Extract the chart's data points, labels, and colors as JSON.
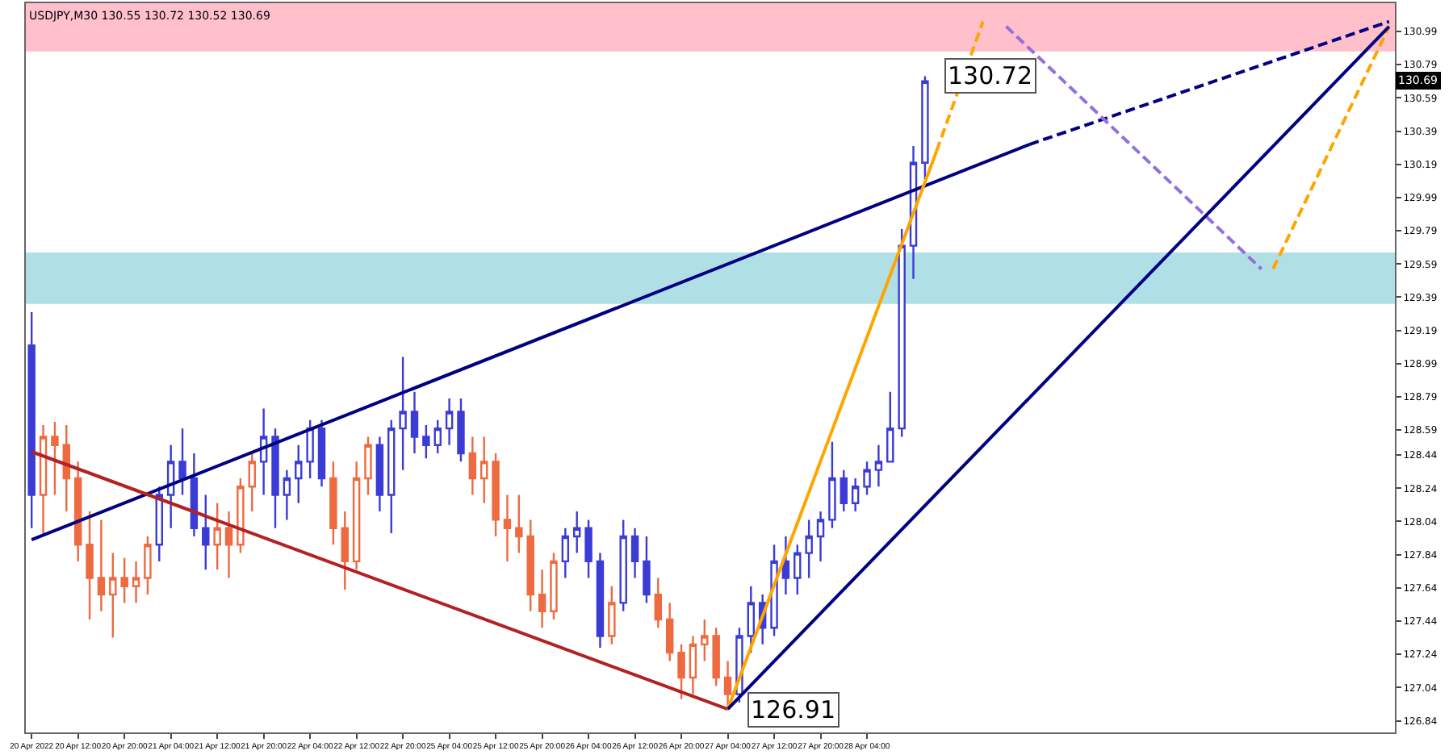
{
  "chart_data": {
    "type": "candlestick",
    "title": "USDJPY,M30 130.55 130.72 130.52 130.69",
    "categories": [
      "20 Apr 2022",
      null,
      null,
      null,
      "20 Apr 12:00",
      null,
      null,
      null,
      "20 Apr 20:00",
      null,
      null,
      null,
      "21 Apr 04:00",
      null,
      null,
      null,
      "21 Apr 12:00",
      null,
      null,
      null,
      "21 Apr 20:00",
      null,
      null,
      null,
      "22 Apr 04:00",
      null,
      null,
      null,
      "22 Apr 12:00",
      null,
      null,
      null,
      "22 Apr 20:00",
      null,
      null,
      null,
      "25 Apr 04:00",
      null,
      null,
      null,
      "25 Apr 12:00",
      null,
      null,
      null,
      "25 Apr 20:00",
      null,
      null,
      null,
      "26 Apr 04:00",
      null,
      null,
      null,
      "26 Apr 12:00",
      null,
      null,
      null,
      "26 Apr 20:00",
      null,
      null,
      null,
      "27 Apr 04:00",
      null,
      null,
      null,
      "27 Apr 12:00",
      null,
      null,
      null,
      "27 Apr 20:00",
      null,
      null,
      null,
      "28 Apr 04:00",
      null,
      null,
      null,
      null,
      null,
      null,
      null,
      null,
      null,
      null,
      null,
      null,
      null,
      null,
      null,
      null,
      null,
      null,
      null,
      null,
      null,
      null,
      null,
      null,
      null,
      null,
      null,
      null,
      null,
      null,
      null,
      null,
      null,
      null,
      null,
      null,
      null,
      null,
      null,
      null,
      null,
      null,
      null,
      null,
      null
    ],
    "ohlc": [
      [
        129.1,
        129.3,
        128.0,
        128.2
      ],
      [
        128.2,
        128.62,
        127.95,
        128.55
      ],
      [
        128.55,
        128.64,
        128.2,
        128.5
      ],
      [
        128.5,
        128.62,
        128.1,
        128.3
      ],
      [
        128.3,
        128.4,
        127.8,
        127.9
      ],
      [
        127.9,
        128.1,
        127.45,
        127.7
      ],
      [
        127.7,
        128.05,
        127.5,
        127.6
      ],
      [
        127.6,
        127.85,
        127.34,
        127.7
      ],
      [
        127.7,
        127.82,
        127.55,
        127.65
      ],
      [
        127.65,
        127.8,
        127.55,
        127.7
      ],
      [
        127.7,
        127.95,
        127.6,
        127.9
      ],
      [
        127.9,
        128.25,
        127.8,
        128.2
      ],
      [
        128.2,
        128.5,
        128.0,
        128.4
      ],
      [
        128.4,
        128.6,
        128.2,
        128.3
      ],
      [
        128.3,
        128.45,
        127.95,
        128.0
      ],
      [
        128.0,
        128.2,
        127.75,
        127.9
      ],
      [
        127.9,
        128.15,
        127.75,
        128.0
      ],
      [
        128.0,
        128.1,
        127.7,
        127.9
      ],
      [
        127.9,
        128.3,
        127.85,
        128.25
      ],
      [
        128.25,
        128.45,
        128.1,
        128.4
      ],
      [
        128.4,
        128.72,
        128.2,
        128.55
      ],
      [
        128.55,
        128.6,
        128.0,
        128.2
      ],
      [
        128.2,
        128.35,
        128.05,
        128.3
      ],
      [
        128.3,
        128.5,
        128.15,
        128.4
      ],
      [
        128.4,
        128.65,
        128.3,
        128.6
      ],
      [
        128.6,
        128.65,
        128.25,
        128.3
      ],
      [
        128.3,
        128.4,
        127.9,
        128.0
      ],
      [
        128.0,
        128.1,
        127.63,
        127.8
      ],
      [
        127.8,
        128.4,
        127.75,
        128.3
      ],
      [
        128.3,
        128.55,
        128.2,
        128.5
      ],
      [
        128.5,
        128.55,
        128.1,
        128.2
      ],
      [
        128.2,
        128.65,
        127.97,
        128.6
      ],
      [
        128.6,
        129.03,
        128.35,
        128.7
      ],
      [
        128.7,
        128.82,
        128.45,
        128.55
      ],
      [
        128.55,
        128.62,
        128.42,
        128.5
      ],
      [
        128.5,
        128.65,
        128.45,
        128.6
      ],
      [
        128.6,
        128.78,
        128.5,
        128.7
      ],
      [
        128.7,
        128.78,
        128.4,
        128.45
      ],
      [
        128.45,
        128.55,
        128.2,
        128.3
      ],
      [
        128.3,
        128.55,
        128.15,
        128.4
      ],
      [
        128.4,
        128.45,
        127.95,
        128.05
      ],
      [
        128.05,
        128.2,
        127.8,
        128.0
      ],
      [
        128.0,
        128.2,
        127.85,
        127.95
      ],
      [
        127.95,
        128.05,
        127.5,
        127.6
      ],
      [
        127.6,
        127.75,
        127.4,
        127.5
      ],
      [
        127.5,
        127.85,
        127.45,
        127.8
      ],
      [
        127.8,
        128.0,
        127.7,
        127.95
      ],
      [
        127.95,
        128.1,
        127.85,
        128.0
      ],
      [
        128.0,
        128.05,
        127.7,
        127.8
      ],
      [
        127.8,
        127.85,
        127.28,
        127.35
      ],
      [
        127.35,
        127.65,
        127.3,
        127.55
      ],
      [
        127.55,
        128.05,
        127.5,
        127.95
      ],
      [
        127.95,
        128.0,
        127.7,
        127.8
      ],
      [
        127.8,
        127.95,
        127.55,
        127.6
      ],
      [
        127.6,
        127.7,
        127.4,
        127.45
      ],
      [
        127.45,
        127.55,
        127.2,
        127.25
      ],
      [
        127.25,
        127.3,
        126.97,
        127.1
      ],
      [
        127.1,
        127.35,
        127.0,
        127.3
      ],
      [
        127.3,
        127.45,
        127.2,
        127.35
      ],
      [
        127.35,
        127.4,
        127.05,
        127.1
      ],
      [
        127.1,
        127.2,
        126.91,
        127.0
      ],
      [
        127.0,
        127.4,
        126.95,
        127.35
      ],
      [
        127.35,
        127.65,
        127.25,
        127.55
      ],
      [
        127.55,
        127.6,
        127.3,
        127.4
      ],
      [
        127.4,
        127.9,
        127.35,
        127.8
      ],
      [
        127.8,
        127.95,
        127.6,
        127.7
      ],
      [
        127.7,
        127.9,
        127.6,
        127.85
      ],
      [
        127.85,
        128.05,
        127.7,
        127.95
      ],
      [
        127.95,
        128.1,
        127.8,
        128.05
      ],
      [
        128.05,
        128.52,
        128.0,
        128.3
      ],
      [
        128.3,
        128.35,
        128.1,
        128.15
      ],
      [
        128.15,
        128.3,
        128.1,
        128.25
      ],
      [
        128.25,
        128.4,
        128.2,
        128.35
      ],
      [
        128.35,
        128.5,
        128.25,
        128.4
      ],
      [
        128.4,
        128.82,
        128.4,
        128.6
      ],
      [
        128.6,
        129.8,
        128.55,
        129.7
      ],
      [
        129.7,
        130.3,
        129.5,
        130.2
      ],
      [
        130.2,
        130.72,
        130.1,
        130.69
      ],
      null,
      null,
      null,
      null,
      null,
      null,
      null,
      null,
      null,
      null,
      null,
      null,
      null,
      null,
      null,
      null,
      null,
      null,
      null,
      null,
      null,
      null,
      null,
      null,
      null,
      null,
      null,
      null,
      null,
      null,
      null,
      null,
      null,
      null,
      null,
      null,
      null,
      null,
      null,
      null
    ],
    "colors": [
      "#3b3bd6",
      "#ee6a40",
      "#ee6a40",
      "#ee6a40",
      "#ee6a40",
      "#ee6a40",
      "#ee6a40",
      "#ee6a40",
      "#ee6a40",
      "#ee6a40",
      "#ee6a40",
      "#3b3bd6",
      "#3b3bd6",
      "#3b3bd6",
      "#3b3bd6",
      "#3b3bd6",
      "#ee6a40",
      "#ee6a40",
      "#ee6a40",
      "#ee6a40",
      "#3b3bd6",
      "#3b3bd6",
      "#3b3bd6",
      "#3b3bd6",
      "#3b3bd6",
      "#3b3bd6",
      "#ee6a40",
      "#ee6a40",
      "#ee6a40",
      "#ee6a40",
      "#3b3bd6",
      "#3b3bd6",
      "#3b3bd6",
      "#3b3bd6",
      "#3b3bd6",
      "#3b3bd6",
      "#3b3bd6",
      "#3b3bd6",
      "#ee6a40",
      "#ee6a40",
      "#ee6a40",
      "#ee6a40",
      "#ee6a40",
      "#ee6a40",
      "#ee6a40",
      "#ee6a40",
      "#3b3bd6",
      "#3b3bd6",
      "#3b3bd6",
      "#3b3bd6",
      "#ee6a40",
      "#3b3bd6",
      "#3b3bd6",
      "#3b3bd6",
      "#ee6a40",
      "#ee6a40",
      "#ee6a40",
      "#ee6a40",
      "#ee6a40",
      "#ee6a40",
      "#ee6a40",
      "#3b3bd6",
      "#3b3bd6",
      "#3b3bd6",
      "#3b3bd6",
      "#3b3bd6",
      "#3b3bd6",
      "#3b3bd6",
      "#3b3bd6",
      "#3b3bd6",
      "#3b3bd6",
      "#3b3bd6",
      "#3b3bd6",
      "#3b3bd6",
      "#3b3bd6",
      "#3b3bd6",
      "#3b3bd6",
      "#3b3bd6",
      null,
      null,
      null,
      null,
      null,
      null,
      null,
      null,
      null,
      null,
      null,
      null,
      null,
      null,
      null,
      null,
      null,
      null,
      null,
      null,
      null,
      null,
      null,
      null,
      null,
      null,
      null,
      null,
      null,
      null,
      null,
      null,
      null,
      null,
      null,
      null,
      null,
      null,
      null,
      null
    ],
    "value_labels": [
      null,
      null,
      null,
      null,
      null,
      null,
      null,
      null,
      null,
      null,
      null,
      null,
      null,
      null,
      null,
      null,
      null,
      null,
      null,
      null,
      null,
      null,
      null,
      null,
      null,
      null,
      null,
      null,
      null,
      null,
      null,
      null,
      null,
      null,
      null,
      null,
      null,
      null,
      null,
      null,
      null,
      null,
      null,
      null,
      null,
      null,
      null,
      null,
      null,
      null,
      null,
      null,
      null,
      null,
      null,
      null,
      null,
      null,
      null,
      null,
      "126.91",
      null,
      null,
      null,
      null,
      null,
      null,
      null,
      null,
      null,
      null,
      null,
      null,
      null,
      null,
      null,
      null,
      "130.72",
      null,
      null,
      null,
      null,
      null,
      null,
      null,
      null,
      null,
      null,
      null,
      null,
      null,
      null,
      null,
      null,
      null,
      null,
      null,
      null,
      null,
      null,
      null,
      null,
      null,
      null,
      null,
      null,
      null,
      null,
      null,
      null,
      null,
      null,
      null,
      null,
      null,
      null,
      null,
      null
    ],
    "series": [
      {
        "type": "line",
        "color": "#000080",
        "line_style": "solid",
        "values": [
          127.93,
          null,
          null,
          null,
          null,
          null,
          null,
          null,
          null,
          null,
          null,
          null,
          null,
          null,
          null,
          null,
          null,
          null,
          null,
          null,
          null,
          null,
          null,
          null,
          null,
          null,
          null,
          null,
          null,
          null,
          null,
          null,
          null,
          null,
          null,
          null,
          null,
          null,
          null,
          null,
          null,
          null,
          null,
          null,
          null,
          null,
          null,
          null,
          null,
          null,
          null,
          null,
          null,
          null,
          null,
          null,
          null,
          null,
          null,
          null,
          null,
          null,
          null,
          null,
          null,
          null,
          null,
          null,
          null,
          null,
          null,
          null,
          null,
          null,
          null,
          null,
          null,
          null,
          null,
          null,
          null,
          null,
          null,
          null,
          null,
          null,
          130.31,
          null,
          null,
          null,
          null,
          null,
          null,
          null,
          null,
          null,
          null,
          null,
          null,
          null,
          null,
          null,
          null,
          null,
          null,
          null,
          null,
          null,
          null,
          null,
          null,
          null,
          null,
          null,
          null,
          null,
          null,
          null
        ]
      },
      {
        "type": "line",
        "color": "#000080",
        "line_style": "dashed",
        "values": [
          null,
          null,
          null,
          null,
          null,
          null,
          null,
          null,
          null,
          null,
          null,
          null,
          null,
          null,
          null,
          null,
          null,
          null,
          null,
          null,
          null,
          null,
          null,
          null,
          null,
          null,
          null,
          null,
          null,
          null,
          null,
          null,
          null,
          null,
          null,
          null,
          null,
          null,
          null,
          null,
          null,
          null,
          null,
          null,
          null,
          null,
          null,
          null,
          null,
          null,
          null,
          null,
          null,
          null,
          null,
          null,
          null,
          null,
          null,
          null,
          null,
          null,
          null,
          null,
          null,
          null,
          null,
          null,
          null,
          null,
          null,
          null,
          null,
          null,
          null,
          null,
          null,
          null,
          null,
          null,
          null,
          null,
          null,
          null,
          null,
          null,
          130.31,
          null,
          null,
          null,
          null,
          null,
          null,
          null,
          null,
          null,
          null,
          null,
          null,
          null,
          null,
          null,
          null,
          null,
          null,
          null,
          null,
          null,
          null,
          null,
          null,
          null,
          null,
          null,
          null,
          null,
          null,
          131.05
        ]
      },
      {
        "type": "line",
        "color": "#b22222",
        "line_style": "solid",
        "values": [
          128.46,
          null,
          null,
          null,
          null,
          null,
          null,
          null,
          null,
          null,
          null,
          null,
          null,
          null,
          null,
          null,
          null,
          null,
          null,
          null,
          null,
          null,
          null,
          null,
          null,
          null,
          null,
          null,
          null,
          null,
          null,
          null,
          null,
          null,
          null,
          null,
          null,
          null,
          null,
          null,
          null,
          null,
          null,
          null,
          null,
          null,
          null,
          null,
          null,
          null,
          null,
          null,
          null,
          null,
          null,
          null,
          null,
          null,
          null,
          null,
          126.91,
          null,
          null,
          null,
          null,
          null,
          null,
          null,
          null,
          null,
          null,
          null,
          null,
          null,
          null,
          null,
          null,
          null,
          null,
          null,
          null,
          null,
          null,
          null,
          null,
          null,
          null,
          null,
          null,
          null,
          null,
          null,
          null,
          null,
          null,
          null,
          null,
          null,
          null,
          null,
          null,
          null,
          null,
          null,
          null,
          null,
          null,
          null,
          null,
          null,
          null,
          null,
          null,
          null,
          null,
          null,
          null,
          null
        ]
      },
      {
        "type": "line",
        "color": "#ffa500",
        "line_style": "solid",
        "values": [
          null,
          null,
          null,
          null,
          null,
          null,
          null,
          null,
          null,
          null,
          null,
          null,
          null,
          null,
          null,
          null,
          null,
          null,
          null,
          null,
          null,
          null,
          null,
          null,
          null,
          null,
          null,
          null,
          null,
          null,
          null,
          null,
          null,
          null,
          null,
          null,
          null,
          null,
          null,
          null,
          null,
          null,
          null,
          null,
          null,
          null,
          null,
          null,
          null,
          null,
          null,
          null,
          null,
          null,
          null,
          null,
          null,
          null,
          null,
          null,
          126.91,
          null,
          null,
          null,
          null,
          null,
          null,
          null,
          null,
          null,
          null,
          null,
          null,
          null,
          null,
          null,
          null,
          null,
          130.27,
          null,
          null,
          null,
          null,
          null,
          null,
          null,
          null,
          null,
          null,
          null,
          null,
          null,
          null,
          null,
          null,
          null,
          null,
          null,
          null,
          null,
          null,
          null,
          null,
          null,
          null,
          null,
          null,
          null,
          null,
          null,
          null,
          null,
          null,
          null,
          null,
          null,
          null,
          null
        ]
      },
      {
        "type": "line",
        "color": "#ffa500",
        "line_style": "dashed",
        "values": [
          null,
          null,
          null,
          null,
          null,
          null,
          null,
          null,
          null,
          null,
          null,
          null,
          null,
          null,
          null,
          null,
          null,
          null,
          null,
          null,
          null,
          null,
          null,
          null,
          null,
          null,
          null,
          null,
          null,
          null,
          null,
          null,
          null,
          null,
          null,
          null,
          null,
          null,
          null,
          null,
          null,
          null,
          null,
          null,
          null,
          null,
          null,
          null,
          null,
          null,
          null,
          null,
          null,
          null,
          null,
          null,
          null,
          null,
          null,
          null,
          null,
          null,
          null,
          null,
          null,
          null,
          null,
          null,
          null,
          null,
          null,
          null,
          null,
          null,
          null,
          null,
          null,
          null,
          130.27,
          null,
          null,
          null,
          131.05,
          null,
          null,
          null,
          null,
          null,
          null,
          null,
          null,
          null,
          null,
          null,
          null,
          null,
          null,
          null,
          null,
          null,
          null,
          null,
          null,
          null,
          null,
          null,
          null,
          null,
          null,
          null,
          null,
          null,
          null,
          null,
          null,
          null,
          null,
          null
        ]
      },
      {
        "type": "line",
        "color": "#9370db",
        "line_style": "dashed",
        "values": [
          null,
          null,
          null,
          null,
          null,
          null,
          null,
          null,
          null,
          null,
          null,
          null,
          null,
          null,
          null,
          null,
          null,
          null,
          null,
          null,
          null,
          null,
          null,
          null,
          null,
          null,
          null,
          null,
          null,
          null,
          null,
          null,
          null,
          null,
          null,
          null,
          null,
          null,
          null,
          null,
          null,
          null,
          null,
          null,
          null,
          null,
          null,
          null,
          null,
          null,
          null,
          null,
          null,
          null,
          null,
          null,
          null,
          null,
          null,
          null,
          null,
          null,
          null,
          null,
          null,
          null,
          null,
          null,
          null,
          null,
          null,
          null,
          null,
          null,
          null,
          null,
          null,
          null,
          null,
          null,
          null,
          null,
          null,
          null,
          131.02,
          null,
          null,
          null,
          null,
          null,
          null,
          null,
          null,
          null,
          null,
          null,
          null,
          null,
          null,
          null,
          null,
          null,
          null,
          null,
          null,
          null,
          129.56,
          null,
          null,
          null,
          null,
          null,
          null,
          null,
          null,
          null,
          null,
          null
        ]
      },
      {
        "type": "line",
        "color": "#ffa500",
        "line_style": "dashed",
        "values": [
          null,
          null,
          null,
          null,
          null,
          null,
          null,
          null,
          null,
          null,
          null,
          null,
          null,
          null,
          null,
          null,
          null,
          null,
          null,
          null,
          null,
          null,
          null,
          null,
          null,
          null,
          null,
          null,
          null,
          null,
          null,
          null,
          null,
          null,
          null,
          null,
          null,
          null,
          null,
          null,
          null,
          null,
          null,
          null,
          null,
          null,
          null,
          null,
          null,
          null,
          null,
          null,
          null,
          null,
          null,
          null,
          null,
          null,
          null,
          null,
          null,
          null,
          null,
          null,
          null,
          null,
          null,
          null,
          null,
          null,
          null,
          null,
          null,
          null,
          null,
          null,
          null,
          null,
          null,
          null,
          null,
          null,
          null,
          null,
          null,
          null,
          null,
          null,
          null,
          null,
          null,
          null,
          null,
          null,
          null,
          null,
          null,
          null,
          null,
          null,
          null,
          null,
          null,
          null,
          null,
          null,
          null,
          129.56,
          null,
          null,
          null,
          null,
          null,
          null,
          null,
          null,
          null,
          131.02
        ]
      },
      {
        "type": "line",
        "color": "#000080",
        "line_style": "solid",
        "values": [
          null,
          null,
          null,
          null,
          null,
          null,
          null,
          null,
          null,
          null,
          null,
          null,
          null,
          null,
          null,
          null,
          null,
          null,
          null,
          null,
          null,
          null,
          null,
          null,
          null,
          null,
          null,
          null,
          null,
          null,
          null,
          null,
          null,
          null,
          null,
          null,
          null,
          null,
          null,
          null,
          null,
          null,
          null,
          null,
          null,
          null,
          null,
          null,
          null,
          null,
          null,
          null,
          null,
          null,
          null,
          null,
          null,
          null,
          null,
          null,
          126.91,
          null,
          null,
          null,
          null,
          null,
          null,
          null,
          null,
          null,
          null,
          null,
          null,
          null,
          null,
          null,
          null,
          null,
          null,
          null,
          null,
          null,
          null,
          null,
          null,
          null,
          null,
          null,
          null,
          null,
          null,
          null,
          null,
          null,
          null,
          null,
          null,
          null,
          null,
          null,
          null,
          null,
          null,
          null,
          null,
          null,
          null,
          null,
          null,
          null,
          null,
          null,
          null,
          null,
          null,
          null,
          null,
          131.02
        ]
      }
    ],
    "bands": [
      {
        "axis": "y",
        "from": 130.87,
        "to": 131.16,
        "color": "#ffc0cb"
      },
      {
        "axis": "y",
        "from": 129.35,
        "to": 129.66,
        "color": "#b0e0e6"
      }
    ],
    "annotations": [
      {
        "text": "130.69",
        "y": 130.69
      }
    ],
    "ylim": [
      126.77,
      131.16
    ],
    "yticks": [
      130.99,
      130.79,
      130.59,
      130.39,
      130.19,
      129.99,
      129.79,
      129.59,
      129.39,
      129.19,
      128.99,
      128.79,
      128.59,
      128.44,
      128.24,
      128.04,
      127.84,
      127.64,
      127.44,
      127.24,
      127.04,
      126.84
    ],
    "grid": false
  }
}
